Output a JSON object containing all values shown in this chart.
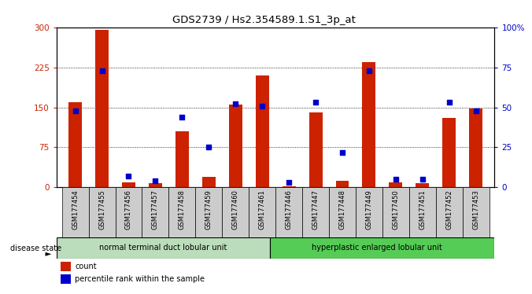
{
  "title": "GDS2739 / Hs2.354589.1.S1_3p_at",
  "samples": [
    "GSM177454",
    "GSM177455",
    "GSM177456",
    "GSM177457",
    "GSM177458",
    "GSM177459",
    "GSM177460",
    "GSM177461",
    "GSM177446",
    "GSM177447",
    "GSM177448",
    "GSM177449",
    "GSM177450",
    "GSM177451",
    "GSM177452",
    "GSM177453"
  ],
  "counts": [
    160,
    295,
    10,
    8,
    105,
    20,
    155,
    210,
    2,
    140,
    12,
    235,
    10,
    8,
    130,
    148
  ],
  "percentiles": [
    48,
    73,
    7,
    4,
    44,
    25,
    52,
    51,
    3,
    53,
    22,
    73,
    5,
    5,
    53,
    48
  ],
  "group1_label": "normal terminal duct lobular unit",
  "group2_label": "hyperplastic enlarged lobular unit",
  "group1_count": 8,
  "group2_count": 8,
  "disease_state_label": "disease state",
  "legend_count_label": "count",
  "legend_pct_label": "percentile rank within the sample",
  "bar_color": "#cc2200",
  "dot_color": "#0000cc",
  "left_axis_color": "#cc2200",
  "right_axis_color": "#0000cc",
  "group1_bg": "#bbddbb",
  "group2_bg": "#55cc55",
  "sample_bg": "#cccccc",
  "ylim_left": [
    0,
    300
  ],
  "ylim_right": [
    0,
    100
  ],
  "yticks_left": [
    0,
    75,
    150,
    225,
    300
  ],
  "yticks_right": [
    0,
    25,
    50,
    75,
    100
  ],
  "ytick_labels_right": [
    "0",
    "25",
    "50",
    "75",
    "100%"
  ],
  "bar_width": 0.5,
  "dot_size": 25
}
